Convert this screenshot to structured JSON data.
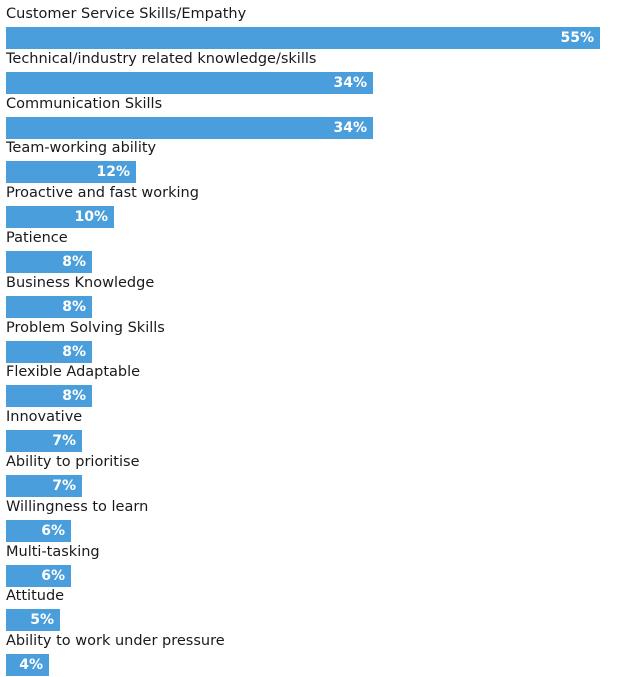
{
  "chart_data": {
    "type": "bar",
    "orientation": "horizontal",
    "categories": [
      "Customer Service Skills/Empathy",
      "Technical/industry related knowledge/skills",
      "Communication Skills",
      "Team-working ability",
      "Proactive and fast working",
      "Patience",
      "Business Knowledge",
      "Problem Solving Skills",
      "Flexible Adaptable",
      "Innovative",
      "Ability to prioritise",
      "Willingness to learn",
      "Multi-tasking",
      "Attitude",
      "Ability to work under pressure"
    ],
    "values": [
      55,
      34,
      34,
      12,
      10,
      8,
      8,
      8,
      8,
      7,
      7,
      6,
      6,
      5,
      4
    ],
    "value_labels": [
      "55%",
      "34%",
      "34%",
      "12%",
      "10%",
      "8%",
      "8%",
      "8%",
      "8%",
      "7%",
      "7%",
      "6%",
      "6%",
      "5%",
      "4%"
    ],
    "xlim": [
      0,
      56.5
    ],
    "bar_color": "#4a9edb",
    "grid": false,
    "legend": "none"
  }
}
